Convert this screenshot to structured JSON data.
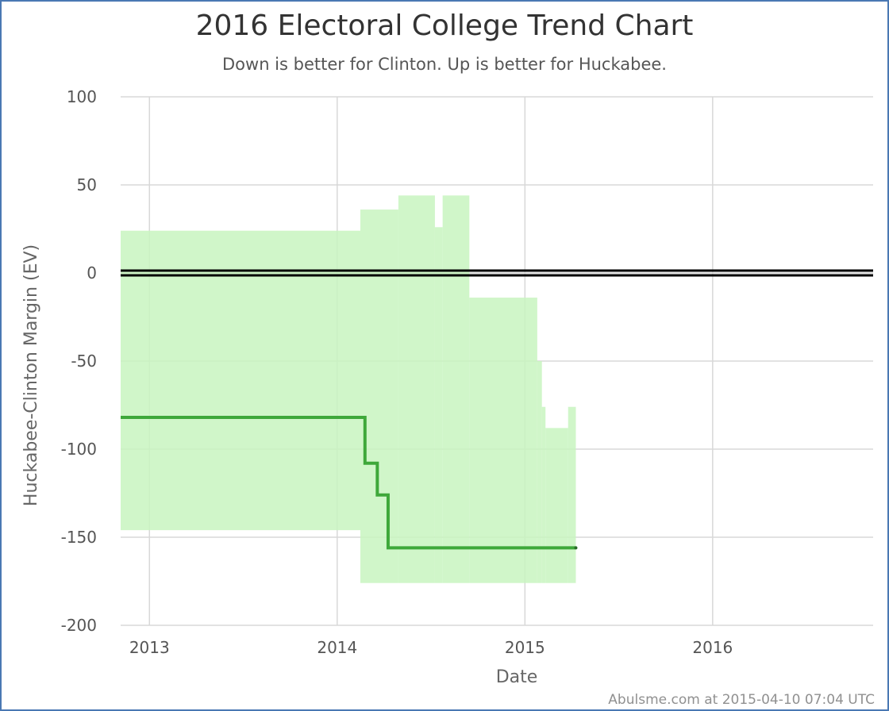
{
  "chart_data": {
    "type": "line",
    "title": "2016 Electoral College Trend Chart",
    "subtitle": "Down is better for Clinton. Up is better for Huckabee.",
    "xlabel": "Date",
    "ylabel": "Huckabee-Clinton Margin (EV)",
    "ylim": [
      -200,
      100
    ],
    "xlim": [
      "2012-11-06",
      "2016-11-08"
    ],
    "yticks": [
      100,
      50,
      0,
      -50,
      -100,
      -150,
      -200
    ],
    "xticks": [
      "2013",
      "2014",
      "2015",
      "2016"
    ],
    "grid": true,
    "reference_line": {
      "y": 0,
      "color": "#000000"
    },
    "band": {
      "color": "#c8f5c0",
      "steps": [
        {
          "from": "2012-11-06",
          "to": "2014-02-15",
          "high": 24,
          "low": -146
        },
        {
          "from": "2014-02-15",
          "to": "2014-04-30",
          "high": 36,
          "low": -176
        },
        {
          "from": "2014-04-30",
          "to": "2014-07-10",
          "high": 44,
          "low": -176
        },
        {
          "from": "2014-07-10",
          "to": "2014-07-25",
          "high": 26,
          "low": -176
        },
        {
          "from": "2014-07-25",
          "to": "2014-09-15",
          "high": 44,
          "low": -176
        },
        {
          "from": "2014-09-15",
          "to": "2015-01-25",
          "high": -14,
          "low": -176
        },
        {
          "from": "2015-01-25",
          "to": "2015-02-03",
          "high": -50,
          "low": -176
        },
        {
          "from": "2015-02-03",
          "to": "2015-02-10",
          "high": -76,
          "low": -176
        },
        {
          "from": "2015-02-10",
          "to": "2015-03-26",
          "high": -88,
          "low": -176
        },
        {
          "from": "2015-03-26",
          "to": "2015-04-10",
          "high": -76,
          "low": -176
        }
      ]
    },
    "series": [
      {
        "color": "#3ea83a",
        "steps": [
          {
            "from": "2012-11-06",
            "to": "2014-02-24",
            "value": -82
          },
          {
            "from": "2014-02-24",
            "to": "2014-03-20",
            "value": -108
          },
          {
            "from": "2014-03-20",
            "to": "2014-04-10",
            "value": -126
          },
          {
            "from": "2014-04-10",
            "to": "2015-04-10",
            "value": -156
          }
        ]
      }
    ]
  },
  "footer": {
    "credit": "Abulsme.com at 2015-04-10 07:04 UTC"
  }
}
